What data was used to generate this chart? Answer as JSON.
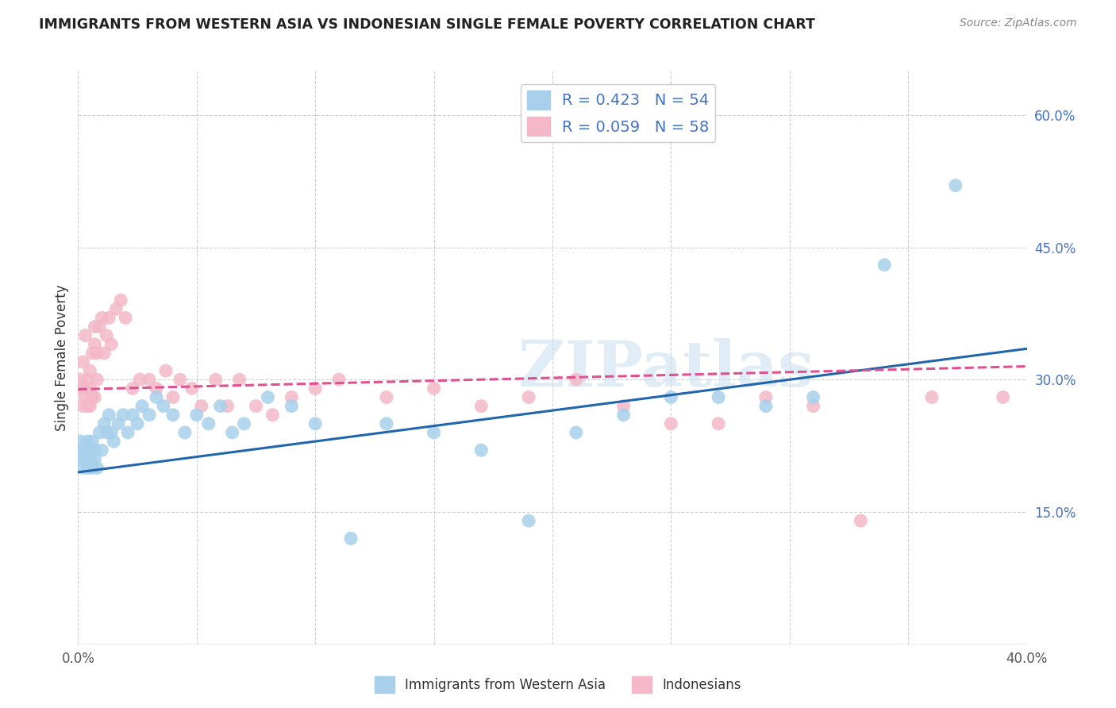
{
  "title": "IMMIGRANTS FROM WESTERN ASIA VS INDONESIAN SINGLE FEMALE POVERTY CORRELATION CHART",
  "source": "Source: ZipAtlas.com",
  "ylabel": "Single Female Poverty",
  "xlim": [
    0.0,
    0.4
  ],
  "ylim": [
    0.0,
    0.65
  ],
  "blue_color": "#a8d0eb",
  "pink_color": "#f4b8c8",
  "blue_line_color": "#2166ac",
  "pink_line_color": "#e05090",
  "legend_r_blue": "0.423",
  "legend_n_blue": "54",
  "legend_r_pink": "0.059",
  "legend_n_pink": "58",
  "legend_label_blue": "Immigrants from Western Asia",
  "legend_label_pink": "Indonesians",
  "watermark": "ZIPatlas",
  "blue_x": [
    0.001,
    0.001,
    0.002,
    0.002,
    0.003,
    0.003,
    0.004,
    0.004,
    0.005,
    0.005,
    0.006,
    0.006,
    0.007,
    0.007,
    0.008,
    0.009,
    0.01,
    0.011,
    0.012,
    0.013,
    0.014,
    0.015,
    0.017,
    0.019,
    0.021,
    0.023,
    0.025,
    0.027,
    0.03,
    0.033,
    0.036,
    0.04,
    0.045,
    0.05,
    0.055,
    0.06,
    0.065,
    0.07,
    0.08,
    0.09,
    0.1,
    0.115,
    0.13,
    0.15,
    0.17,
    0.19,
    0.21,
    0.23,
    0.25,
    0.27,
    0.29,
    0.31,
    0.34,
    0.37
  ],
  "blue_y": [
    0.23,
    0.21,
    0.22,
    0.2,
    0.22,
    0.21,
    0.23,
    0.2,
    0.22,
    0.21,
    0.2,
    0.23,
    0.21,
    0.22,
    0.2,
    0.24,
    0.22,
    0.25,
    0.24,
    0.26,
    0.24,
    0.23,
    0.25,
    0.26,
    0.24,
    0.26,
    0.25,
    0.27,
    0.26,
    0.28,
    0.27,
    0.26,
    0.24,
    0.26,
    0.25,
    0.27,
    0.24,
    0.25,
    0.28,
    0.27,
    0.25,
    0.12,
    0.25,
    0.24,
    0.22,
    0.14,
    0.24,
    0.26,
    0.28,
    0.28,
    0.27,
    0.28,
    0.43,
    0.52
  ],
  "pink_x": [
    0.001,
    0.001,
    0.002,
    0.002,
    0.003,
    0.003,
    0.003,
    0.004,
    0.004,
    0.005,
    0.005,
    0.005,
    0.006,
    0.006,
    0.007,
    0.007,
    0.007,
    0.008,
    0.008,
    0.009,
    0.01,
    0.011,
    0.012,
    0.013,
    0.014,
    0.016,
    0.018,
    0.02,
    0.023,
    0.026,
    0.03,
    0.033,
    0.037,
    0.04,
    0.043,
    0.048,
    0.052,
    0.058,
    0.063,
    0.068,
    0.075,
    0.082,
    0.09,
    0.1,
    0.11,
    0.13,
    0.15,
    0.17,
    0.19,
    0.21,
    0.23,
    0.25,
    0.27,
    0.29,
    0.31,
    0.33,
    0.36,
    0.39
  ],
  "pink_y": [
    0.29,
    0.3,
    0.27,
    0.32,
    0.29,
    0.28,
    0.35,
    0.3,
    0.27,
    0.31,
    0.29,
    0.27,
    0.33,
    0.28,
    0.36,
    0.34,
    0.28,
    0.33,
    0.3,
    0.36,
    0.37,
    0.33,
    0.35,
    0.37,
    0.34,
    0.38,
    0.39,
    0.37,
    0.29,
    0.3,
    0.3,
    0.29,
    0.31,
    0.28,
    0.3,
    0.29,
    0.27,
    0.3,
    0.27,
    0.3,
    0.27,
    0.26,
    0.28,
    0.29,
    0.3,
    0.28,
    0.29,
    0.27,
    0.28,
    0.3,
    0.27,
    0.25,
    0.25,
    0.28,
    0.27,
    0.14,
    0.28,
    0.28
  ],
  "blue_line_x0": 0.0,
  "blue_line_y0": 0.195,
  "blue_line_x1": 0.4,
  "blue_line_y1": 0.335,
  "pink_line_x0": 0.0,
  "pink_line_y0": 0.289,
  "pink_line_x1": 0.4,
  "pink_line_y1": 0.315
}
